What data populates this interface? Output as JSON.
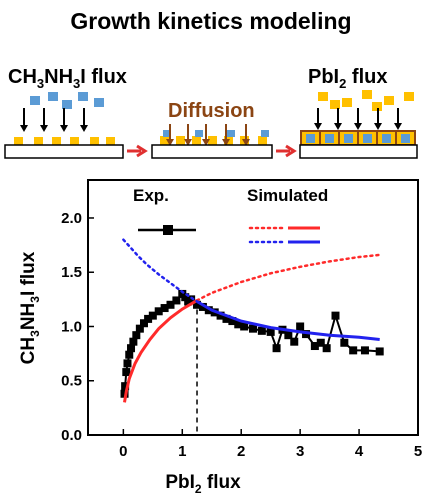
{
  "page_title": "Growth kinetics modeling",
  "schematic": {
    "step1_label_prefix": "CH",
    "step1_label_sub1": "3",
    "step1_label_mid": "NH",
    "step1_label_sub2": "3",
    "step1_label_suffix": "I flux",
    "step2_label": "Diffusion",
    "step3_label_prefix": "PbI",
    "step3_label_sub": "2",
    "step3_label_suffix": " flux",
    "colors": {
      "ma_flux": "#5b9bd5",
      "pbi2_flux": "#ffc000",
      "diffusion": "#8b4513",
      "transition_arrow": "#e03030",
      "substrate_border": "#000000",
      "film_border": "#8b4513"
    }
  },
  "chart_data": {
    "type": "line",
    "xlabel": "PbI2 flux",
    "ylabel": "CH3NH3I flux",
    "xlim": [
      -0.6,
      5.0
    ],
    "ylim": [
      0.0,
      2.35
    ],
    "xticks": [
      "0",
      "1",
      "2",
      "3",
      "4",
      "5"
    ],
    "yticks": [
      "0.0",
      "0.5",
      "1.0",
      "1.5",
      "2.0"
    ],
    "legend": {
      "exp_label": "Exp.",
      "sim_label": "Simulated",
      "placement": "top"
    },
    "crossover_x": 1.25,
    "series": [
      {
        "name": "Exp.",
        "color": "#000000",
        "marker": "square",
        "points": [
          [
            0.02,
            0.38
          ],
          [
            0.03,
            0.45
          ],
          [
            0.05,
            0.58
          ],
          [
            0.07,
            0.66
          ],
          [
            0.1,
            0.74
          ],
          [
            0.13,
            0.8
          ],
          [
            0.17,
            0.86
          ],
          [
            0.22,
            0.92
          ],
          [
            0.28,
            0.98
          ],
          [
            0.35,
            1.03
          ],
          [
            0.42,
            1.07
          ],
          [
            0.5,
            1.1
          ],
          [
            0.6,
            1.14
          ],
          [
            0.7,
            1.17
          ],
          [
            0.8,
            1.2
          ],
          [
            0.9,
            1.24
          ],
          [
            1.0,
            1.3
          ],
          [
            1.05,
            1.27
          ],
          [
            1.1,
            1.23
          ],
          [
            1.15,
            1.25
          ],
          [
            1.25,
            1.2
          ],
          [
            1.35,
            1.18
          ],
          [
            1.45,
            1.15
          ],
          [
            1.55,
            1.13
          ],
          [
            1.65,
            1.1
          ],
          [
            1.75,
            1.07
          ],
          [
            1.85,
            1.05
          ],
          [
            1.95,
            1.02
          ],
          [
            2.05,
            1.0
          ],
          [
            2.2,
            0.98
          ],
          [
            2.35,
            0.96
          ],
          [
            2.5,
            0.95
          ],
          [
            2.6,
            0.8
          ],
          [
            2.7,
            0.97
          ],
          [
            2.8,
            0.92
          ],
          [
            2.9,
            0.86
          ],
          [
            3.0,
            1.0
          ],
          [
            3.1,
            0.93
          ],
          [
            3.25,
            0.82
          ],
          [
            3.35,
            0.85
          ],
          [
            3.45,
            0.8
          ],
          [
            3.6,
            1.1
          ],
          [
            3.75,
            0.85
          ],
          [
            3.9,
            0.78
          ],
          [
            4.1,
            0.78
          ],
          [
            4.35,
            0.77
          ]
        ]
      },
      {
        "name": "Simulated (red)",
        "color": "#ff2a2a",
        "points": [
          [
            0.02,
            0.3
          ],
          [
            0.05,
            0.4
          ],
          [
            0.1,
            0.52
          ],
          [
            0.2,
            0.66
          ],
          [
            0.3,
            0.76
          ],
          [
            0.45,
            0.88
          ],
          [
            0.6,
            0.98
          ],
          [
            0.8,
            1.08
          ],
          [
            1.0,
            1.16
          ],
          [
            1.25,
            1.24
          ]
        ],
        "dotted_points": [
          [
            1.25,
            1.24
          ],
          [
            1.5,
            1.31
          ],
          [
            2.0,
            1.41
          ],
          [
            2.5,
            1.49
          ],
          [
            3.0,
            1.55
          ],
          [
            3.5,
            1.6
          ],
          [
            4.0,
            1.64
          ],
          [
            4.35,
            1.66
          ]
        ]
      },
      {
        "name": "Simulated (blue)",
        "color": "#2222ee",
        "points": [
          [
            1.25,
            1.23
          ],
          [
            1.5,
            1.15
          ],
          [
            2.0,
            1.05
          ],
          [
            2.5,
            0.99
          ],
          [
            3.0,
            0.95
          ],
          [
            3.5,
            0.92
          ],
          [
            4.0,
            0.9
          ],
          [
            4.35,
            0.88
          ]
        ],
        "dotted_points": [
          [
            0.0,
            1.8
          ],
          [
            0.1,
            1.74
          ],
          [
            0.25,
            1.65
          ],
          [
            0.4,
            1.57
          ],
          [
            0.6,
            1.48
          ],
          [
            0.8,
            1.4
          ],
          [
            1.0,
            1.32
          ],
          [
            1.25,
            1.23
          ]
        ]
      }
    ]
  }
}
